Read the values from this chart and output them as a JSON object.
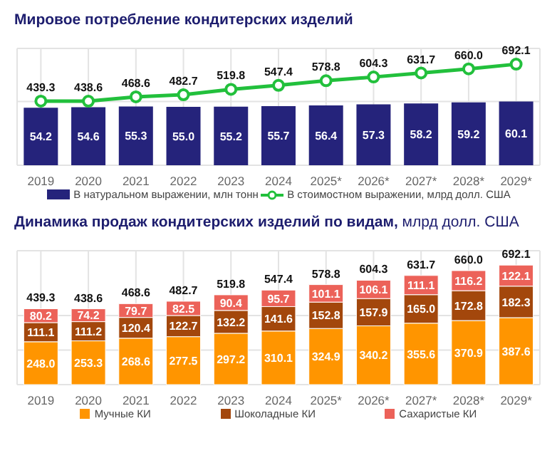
{
  "chart_data": [
    {
      "type": "bar",
      "title": "Мировое потребление кондитерских изделий",
      "categories": [
        "2019",
        "2020",
        "2021",
        "2022",
        "2023",
        "2024",
        "2025*",
        "2026*",
        "2027*",
        "2028*",
        "2029*"
      ],
      "series": [
        {
          "name": "В натуральном выражении, млн тонн",
          "color": "#25237b",
          "values": [
            54.2,
            54.6,
            55.3,
            55.0,
            55.2,
            55.7,
            56.4,
            57.3,
            58.2,
            59.2,
            60.1
          ],
          "value_labels": [
            "54.2",
            "54.6",
            "55.3",
            "55.0",
            "55.2",
            "55.7",
            "56.4",
            "57.3",
            "58.2",
            "59.2",
            "60.1"
          ]
        },
        {
          "name": "В стоимостном выражении, млрд долл. США",
          "type": "line",
          "axis": "y2",
          "color": "#22c03c",
          "marker": "circle",
          "values": [
            439.3,
            438.6,
            468.6,
            482.7,
            519.8,
            547.4,
            578.8,
            604.3,
            631.7,
            660.0,
            692.1
          ],
          "value_labels": [
            "439.3",
            "438.6",
            "468.6",
            "482.7",
            "519.8",
            "547.4",
            "578.8",
            "604.3",
            "631.7",
            "660.0",
            "692.1"
          ]
        }
      ],
      "ylim": [
        0,
        110
      ],
      "y2lim": [
        0,
        800
      ],
      "grid": true,
      "legend": "bottom",
      "tick_labels": "x"
    },
    {
      "type": "bar",
      "title": "Динамика продаж кондитерских изделий по видам,",
      "subtitle": "млрд долл. США",
      "categories": [
        "2019",
        "2020",
        "2021",
        "2022",
        "2023",
        "2024",
        "2025*",
        "2026*",
        "2027*",
        "2028*",
        "2029*"
      ],
      "stacked": true,
      "series": [
        {
          "name": "Мучные КИ",
          "color": "#ff9500",
          "values": [
            248.0,
            253.3,
            268.6,
            277.5,
            297.2,
            310.1,
            324.9,
            340.2,
            355.6,
            370.9,
            387.6
          ],
          "value_labels": [
            "248.0",
            "253.3",
            "268.6",
            "277.5",
            "297.2",
            "310.1",
            "324.9",
            "340.2",
            "355.6",
            "370.9",
            "387.6"
          ]
        },
        {
          "name": "Шоколадные КИ",
          "color": "#a3470c",
          "values": [
            111.1,
            111.2,
            120.4,
            122.7,
            132.2,
            141.6,
            152.8,
            157.9,
            165.0,
            172.8,
            182.3
          ],
          "value_labels": [
            "111.1",
            "111.2",
            "120.4",
            "122.7",
            "132.2",
            "141.6",
            "152.8",
            "157.9",
            "165.0",
            "172.8",
            "182.3"
          ]
        },
        {
          "name": "Сахаристые КИ",
          "color": "#ec6259",
          "values": [
            80.2,
            74.2,
            79.7,
            82.5,
            90.4,
            95.7,
            101.1,
            106.1,
            111.1,
            116.2,
            122.1
          ],
          "value_labels": [
            "80.2",
            "74.2",
            "79.7",
            "82.5",
            "90.4",
            "95.7",
            "101.1",
            "106.1",
            "111.1",
            "116.2",
            "122.1"
          ]
        }
      ],
      "totals": [
        "439.3",
        "438.6",
        "468.6",
        "482.7",
        "519.8",
        "547.4",
        "578.8",
        "604.3",
        "631.7",
        "660.0",
        "692.1"
      ],
      "grid": true,
      "legend": "bottom",
      "tick_labels": "x"
    }
  ]
}
